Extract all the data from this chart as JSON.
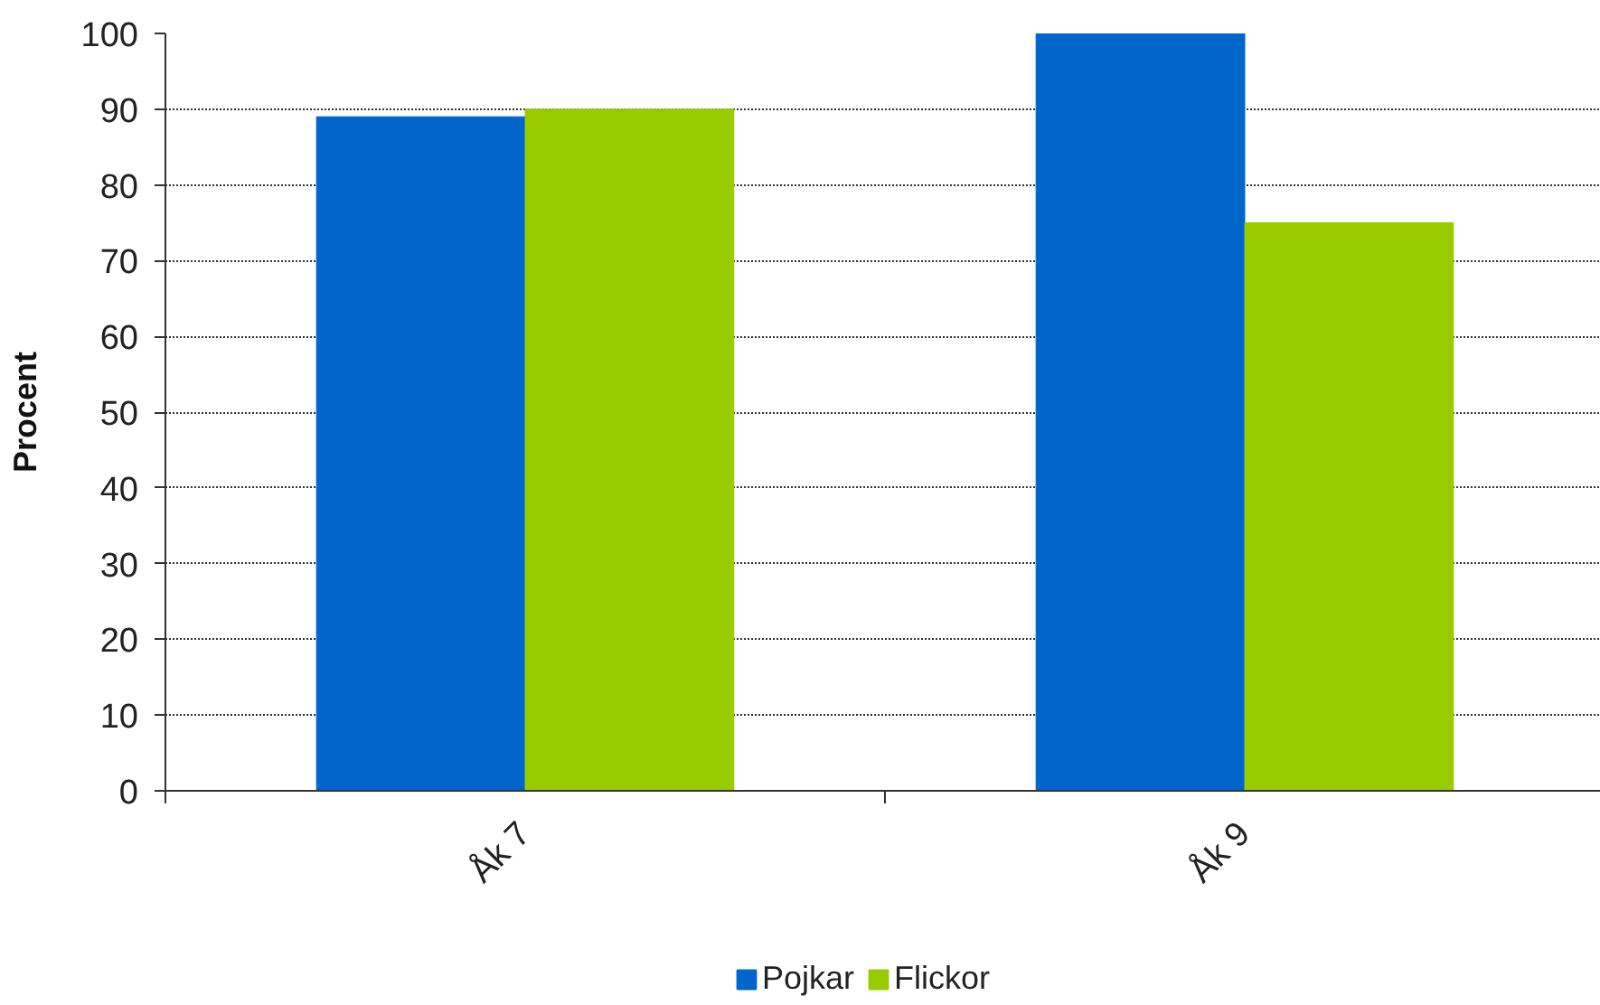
{
  "chart_data": {
    "type": "bar",
    "ylabel": "Procent",
    "categories": [
      "Åk 7",
      "Åk 9"
    ],
    "series": [
      {
        "name": "Pojkar",
        "color": "#0066cc",
        "values": [
          89,
          100
        ]
      },
      {
        "name": "Flickor",
        "color": "#99cc00",
        "values": [
          90,
          75
        ]
      }
    ],
    "ylim": [
      0,
      100
    ],
    "yticks": [
      0,
      10,
      20,
      30,
      40,
      50,
      60,
      70,
      80,
      90,
      100
    ],
    "grid": "y",
    "legend": "bottom"
  }
}
